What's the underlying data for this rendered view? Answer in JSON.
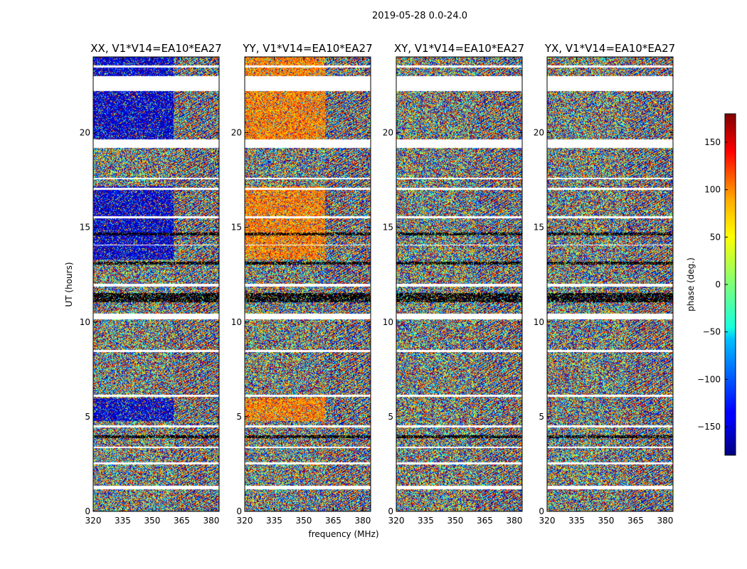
{
  "chart_data": {
    "type": "heatmap",
    "suptitle": "2019-05-28 0.0-24.0",
    "xlabel": "frequency (MHz)",
    "ylabel": "UT (hours)",
    "xlim": [
      320,
      384
    ],
    "ylim": [
      0,
      24
    ],
    "xticks": [
      "320",
      "335",
      "350",
      "365",
      "380"
    ],
    "xtick_values": [
      320,
      335,
      350,
      365,
      380
    ],
    "yticks": [
      "0",
      "5",
      "10",
      "15",
      "20"
    ],
    "ytick_values": [
      0,
      5,
      10,
      15,
      20
    ],
    "panels": [
      {
        "title": "XX, V1*V14=EA10*EA27",
        "polarization": "XX",
        "low_band_phase_deg": -150
      },
      {
        "title": "YY, V1*V14=EA10*EA27",
        "polarization": "YY",
        "low_band_phase_deg": 90
      },
      {
        "title": "XY, V1*V14=EA10*EA27",
        "polarization": "XY",
        "low_band_phase_deg": null
      },
      {
        "title": "YX, V1*V14=EA10*EA27",
        "polarization": "YX",
        "low_band_phase_deg": null
      }
    ],
    "coherent_band_upper_mhz": 361,
    "blank_intervals_ut": [
      [
        1.2,
        1.38
      ],
      [
        2.48,
        2.62
      ],
      [
        3.35,
        3.45
      ],
      [
        4.45,
        4.55
      ],
      [
        6.05,
        6.18
      ],
      [
        8.45,
        8.55
      ],
      [
        10.15,
        10.45
      ],
      [
        11.9,
        12.05
      ],
      [
        14.05,
        14.12
      ],
      [
        15.5,
        15.6
      ],
      [
        17.0,
        17.1
      ],
      [
        17.55,
        17.65
      ],
      [
        19.2,
        19.65
      ],
      [
        22.2,
        23.0
      ],
      [
        23.45,
        23.55
      ]
    ],
    "dark_intervals_ut": [
      [
        11.05,
        11.55
      ],
      [
        13.05,
        13.2
      ],
      [
        14.6,
        14.75
      ],
      [
        3.9,
        4.05
      ]
    ],
    "coherent_intervals_ut": [
      [
        0,
        1.2
      ],
      [
        1.38,
        2.48
      ],
      [
        2.62,
        3.35
      ],
      [
        3.45,
        4.45
      ],
      [
        4.55,
        6.05
      ],
      [
        6.18,
        8.45
      ],
      [
        8.55,
        10.15
      ],
      [
        10.45,
        11.9
      ],
      [
        12.05,
        14.05
      ],
      [
        14.12,
        15.5
      ],
      [
        15.6,
        17.0
      ],
      [
        17.1,
        17.55
      ],
      [
        17.65,
        19.2
      ],
      [
        19.65,
        22.2
      ],
      [
        23.0,
        24.0
      ]
    ],
    "colorbar": {
      "label": "phase (deg.)",
      "range": [
        -180,
        180
      ],
      "ticks": [
        "150",
        "100",
        "50",
        "0",
        "−50",
        "−100",
        "−150"
      ],
      "tick_values": [
        150,
        100,
        50,
        0,
        -50,
        -100,
        -150
      ],
      "colormap": "jet"
    }
  }
}
